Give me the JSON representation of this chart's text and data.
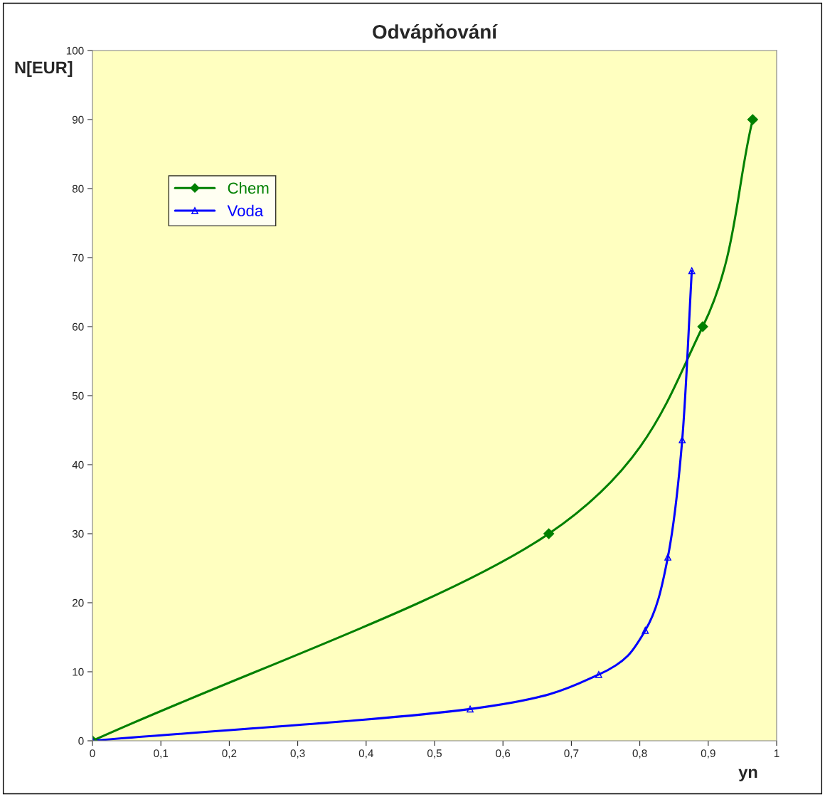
{
  "chart_data": {
    "type": "line",
    "title": "Odvápňování",
    "xlabel": "yn",
    "ylabel": "N[EUR]",
    "xlim": [
      0,
      1
    ],
    "ylim": [
      0,
      100
    ],
    "xticks": [
      0,
      {
        "value": 0.1,
        "label": "0,1"
      },
      {
        "value": 0.2,
        "label": "0,2"
      },
      {
        "value": 0.3,
        "label": "0,3"
      },
      {
        "value": 0.4,
        "label": "0,4"
      },
      {
        "value": 0.5,
        "label": "0,5"
      },
      {
        "value": 0.6,
        "label": "0,6"
      },
      {
        "value": 0.7,
        "label": "0,7"
      },
      {
        "value": 0.8,
        "label": "0,8"
      },
      {
        "value": 0.9,
        "label": "0,9"
      },
      1
    ],
    "yticks": [
      0,
      10,
      20,
      30,
      40,
      50,
      60,
      70,
      80,
      90,
      100
    ],
    "grid": false,
    "legend": "top left",
    "line_style": "solid",
    "series": [
      {
        "name": "Chem",
        "color": "#008000",
        "marker": "diamond",
        "x": [
          0,
          0.667,
          0.892,
          0.965
        ],
        "values": [
          0,
          30,
          60,
          90
        ]
      },
      {
        "name": "Voda",
        "color": "#0000ff",
        "marker": "triangle",
        "x": [
          0,
          0.552,
          0.74,
          0.808,
          0.841,
          0.862,
          0.876
        ],
        "values": [
          0,
          4.6,
          9.6,
          16,
          26.6,
          43.6,
          68.1
        ]
      }
    ]
  }
}
